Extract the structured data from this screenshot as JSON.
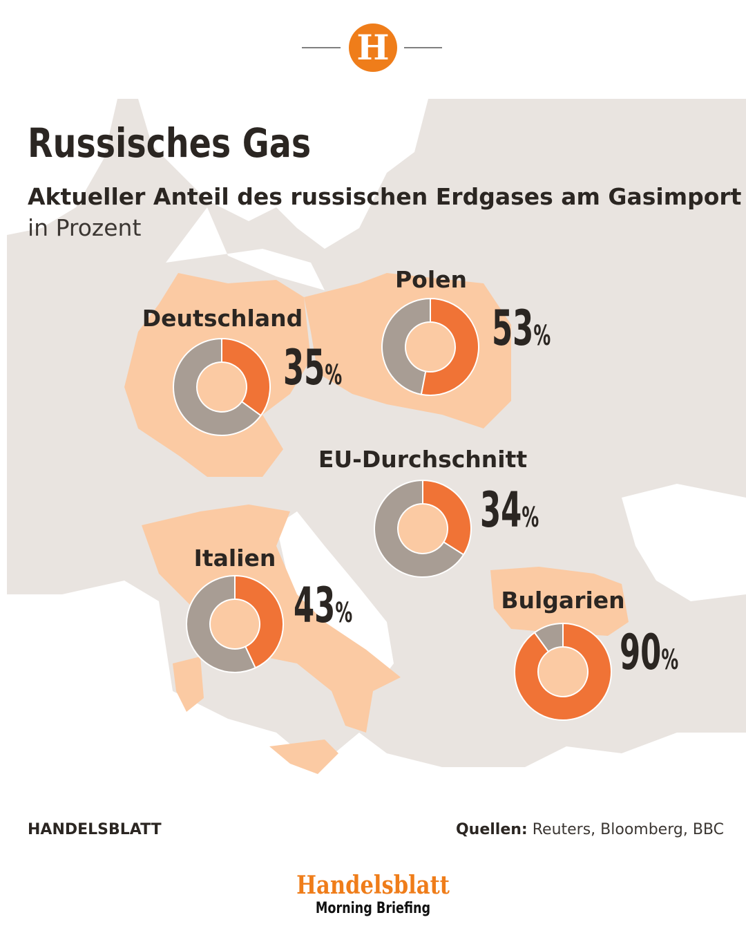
{
  "header": {
    "logo": "H"
  },
  "chart_data": {
    "type": "donut",
    "title": "Russisches Gas",
    "subtitle": "Aktueller Anteil des russischen Erdgases am Gasimport",
    "unit": "in Prozent",
    "categories": [
      "Deutschland",
      "Polen",
      "EU-Durchschnitt",
      "Italien",
      "Bulgarien"
    ],
    "values": [
      35,
      53,
      34,
      43,
      90
    ],
    "value_labels": [
      "35%",
      "53%",
      "34%",
      "43%",
      "90%"
    ],
    "color": "#f07336",
    "rest_color": "#a89d94"
  },
  "credit": "HANDELSBLATT",
  "source": {
    "label": "Quellen:",
    "text": "Reuters, Bloomberg, BBC"
  },
  "footer": {
    "brand": "Handelsblatt",
    "product": "Morning Briefing"
  }
}
